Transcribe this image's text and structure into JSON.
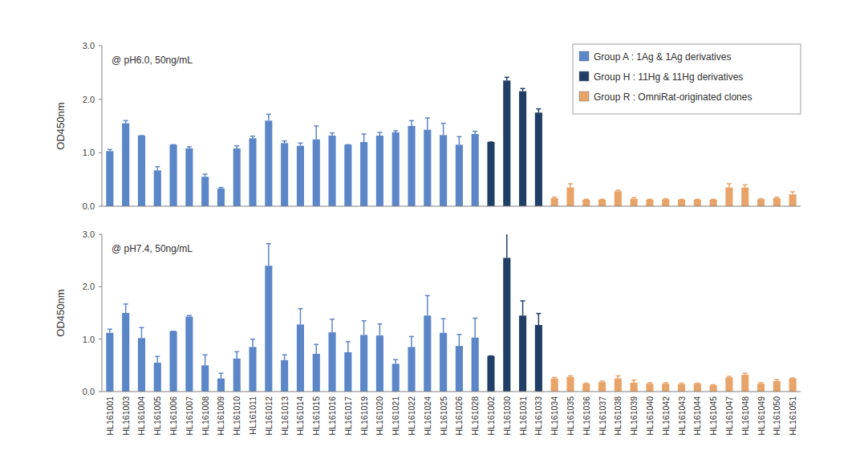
{
  "chart_data": [
    {
      "type": "bar",
      "title": "@ pH6.0, 50ng/mL",
      "y_label": "OD450nm",
      "categories": [
        "HL161001",
        "HL161003",
        "HL161004",
        "HL161005",
        "HL161006",
        "HL161007",
        "HL161008",
        "HL161009",
        "HL161010",
        "HL161011",
        "HL161012",
        "HL161013",
        "HL161014",
        "HL161015",
        "HL161016",
        "HL161017",
        "HL161019",
        "HL161020",
        "HL161021",
        "HL161022",
        "HL161024",
        "HL161025",
        "HL161026",
        "HL161028",
        "HL161002",
        "HL161030",
        "HL161031",
        "HL161033",
        "HL161034",
        "HL161035",
        "HL161036",
        "HL161037",
        "HL161038",
        "HL161039",
        "HL161040",
        "HL161042",
        "HL161043",
        "HL161044",
        "HL161045",
        "HL161047",
        "HL161048",
        "HL161049",
        "HL161050",
        "HL161051"
      ],
      "series": [
        {
          "name": "Group A : 1Ag & 1Ag derivatives",
          "color": "#5b86c8",
          "values": [
            1.03,
            1.55,
            1.32,
            0.67,
            1.15,
            1.08,
            0.55,
            0.33,
            1.08,
            1.27,
            1.6,
            1.18,
            1.13,
            1.25,
            1.32,
            1.15,
            1.2,
            1.32,
            1.38,
            1.5,
            1.43,
            1.33,
            1.15,
            1.35,
            null,
            null,
            null,
            null,
            null,
            null,
            null,
            null,
            null,
            null,
            null,
            null,
            null,
            null,
            null,
            null,
            null,
            null,
            null,
            null
          ],
          "errors": [
            0.03,
            0.05,
            0,
            0.07,
            0,
            0.03,
            0.05,
            0.02,
            0.05,
            0.04,
            0.12,
            0.04,
            0.05,
            0.25,
            0.05,
            0,
            0.15,
            0.06,
            0.03,
            0.1,
            0.22,
            0.22,
            0.15,
            0.05,
            null,
            null,
            null,
            null,
            null,
            null,
            null,
            null,
            null,
            null,
            null,
            null,
            null,
            null,
            null,
            null,
            null,
            null,
            null,
            null
          ]
        },
        {
          "name": "Group H : 11Hg & 11Hg derivatives",
          "color": "#213f66",
          "values": [
            null,
            null,
            null,
            null,
            null,
            null,
            null,
            null,
            null,
            null,
            null,
            null,
            null,
            null,
            null,
            null,
            null,
            null,
            null,
            null,
            null,
            null,
            null,
            null,
            1.2,
            2.35,
            2.15,
            1.75,
            null,
            null,
            null,
            null,
            null,
            null,
            null,
            null,
            null,
            null,
            null,
            null,
            null,
            null,
            null,
            null
          ],
          "errors": [
            null,
            null,
            null,
            null,
            null,
            null,
            null,
            null,
            null,
            null,
            null,
            null,
            null,
            null,
            null,
            null,
            null,
            null,
            null,
            null,
            null,
            null,
            null,
            null,
            0,
            0.06,
            0.05,
            0.07,
            null,
            null,
            null,
            null,
            null,
            null,
            null,
            null,
            null,
            null,
            null,
            null,
            null,
            null,
            null,
            null
          ]
        },
        {
          "name": "Group R : OmniRat-originated clones",
          "color": "#e8a368",
          "values": [
            null,
            null,
            null,
            null,
            null,
            null,
            null,
            null,
            null,
            null,
            null,
            null,
            null,
            null,
            null,
            null,
            null,
            null,
            null,
            null,
            null,
            null,
            null,
            null,
            null,
            null,
            null,
            null,
            0.15,
            0.35,
            0.12,
            0.12,
            0.28,
            0.14,
            0.12,
            0.13,
            0.12,
            0.12,
            0.12,
            0.35,
            0.35,
            0.13,
            0.15,
            0.22
          ],
          "errors": [
            null,
            null,
            null,
            null,
            null,
            null,
            null,
            null,
            null,
            null,
            null,
            null,
            null,
            null,
            null,
            null,
            null,
            null,
            null,
            null,
            null,
            null,
            null,
            null,
            null,
            null,
            null,
            null,
            0.02,
            0.07,
            0.01,
            0.01,
            0.02,
            0.02,
            0.01,
            0.01,
            0.01,
            0.01,
            0.01,
            0.07,
            0.05,
            0.01,
            0.02,
            0.05
          ]
        }
      ],
      "ylim": [
        0,
        3
      ],
      "yticks": [
        {
          "value": 0,
          "label": "0.0"
        },
        {
          "value": 1,
          "label": "1.0"
        },
        {
          "value": 2,
          "label": "2.0"
        },
        {
          "value": 3,
          "label": "3.0"
        }
      ],
      "grid": false,
      "legend": "upper right",
      "tick_labels": "y"
    },
    {
      "type": "bar",
      "title": "@ pH7.4, 50ng/mL",
      "y_label": "OD450nm",
      "categories": [
        "HL161001",
        "HL161003",
        "HL161004",
        "HL161005",
        "HL161006",
        "HL161007",
        "HL161008",
        "HL161009",
        "HL161010",
        "HL161011",
        "HL161012",
        "HL161013",
        "HL161014",
        "HL161015",
        "HL161016",
        "HL161017",
        "HL161019",
        "HL161020",
        "HL161021",
        "HL161022",
        "HL161024",
        "HL161025",
        "HL161026",
        "HL161028",
        "HL161002",
        "HL161030",
        "HL161031",
        "HL161033",
        "HL161034",
        "HL161035",
        "HL161036",
        "HL161037",
        "HL161038",
        "HL161039",
        "HL161040",
        "HL161042",
        "HL161043",
        "HL161044",
        "HL161045",
        "HL161047",
        "HL161048",
        "HL161049",
        "HL161050",
        "HL161051"
      ],
      "series": [
        {
          "color": "#5b86c8",
          "values": [
            1.12,
            1.5,
            1.02,
            0.55,
            1.15,
            1.43,
            0.5,
            0.25,
            0.63,
            0.85,
            2.4,
            0.6,
            1.28,
            0.72,
            1.13,
            0.75,
            1.08,
            1.07,
            0.53,
            0.85,
            1.45,
            1.12,
            0.87,
            1.03,
            null,
            null,
            null,
            null,
            null,
            null,
            null,
            null,
            null,
            null,
            null,
            null,
            null,
            null,
            null,
            null,
            null,
            null,
            null,
            null
          ],
          "errors": [
            0.07,
            0.17,
            0.2,
            0.12,
            0,
            0.02,
            0.2,
            0.1,
            0.13,
            0.15,
            0.42,
            0.1,
            0.3,
            0.18,
            0.25,
            0.2,
            0.27,
            0.22,
            0.08,
            0.2,
            0.38,
            0.27,
            0.22,
            0.37,
            null,
            null,
            null,
            null,
            null,
            null,
            null,
            null,
            null,
            null,
            null,
            null,
            null,
            null,
            null,
            null,
            null,
            null,
            null,
            null
          ]
        },
        {
          "color": "#213f66",
          "values": [
            null,
            null,
            null,
            null,
            null,
            null,
            null,
            null,
            null,
            null,
            null,
            null,
            null,
            null,
            null,
            null,
            null,
            null,
            null,
            null,
            null,
            null,
            null,
            null,
            0.68,
            2.55,
            1.45,
            1.27,
            null,
            null,
            null,
            null,
            null,
            null,
            null,
            null,
            null,
            null,
            null,
            null,
            null,
            null,
            null,
            null
          ],
          "errors": [
            null,
            null,
            null,
            null,
            null,
            null,
            null,
            null,
            null,
            null,
            null,
            null,
            null,
            null,
            null,
            null,
            null,
            null,
            null,
            null,
            null,
            null,
            null,
            null,
            0,
            0.5,
            0.28,
            0.22,
            null,
            null,
            null,
            null,
            null,
            null,
            null,
            null,
            null,
            null,
            null,
            null,
            null,
            null,
            null,
            null
          ]
        },
        {
          "color": "#e8a368",
          "values": [
            null,
            null,
            null,
            null,
            null,
            null,
            null,
            null,
            null,
            null,
            null,
            null,
            null,
            null,
            null,
            null,
            null,
            null,
            null,
            null,
            null,
            null,
            null,
            null,
            null,
            null,
            null,
            null,
            0.25,
            0.28,
            0.15,
            0.18,
            0.25,
            0.17,
            0.15,
            0.15,
            0.14,
            0.15,
            0.12,
            0.27,
            0.32,
            0.15,
            0.2,
            0.25
          ],
          "errors": [
            null,
            null,
            null,
            null,
            null,
            null,
            null,
            null,
            null,
            null,
            null,
            null,
            null,
            null,
            null,
            null,
            null,
            null,
            null,
            null,
            null,
            null,
            null,
            null,
            null,
            null,
            null,
            null,
            0.02,
            0.02,
            0.01,
            0.02,
            0.05,
            0.05,
            0.02,
            0.02,
            0.02,
            0.01,
            0.01,
            0.02,
            0.03,
            0.02,
            0.03,
            0.01
          ]
        }
      ],
      "ylim": [
        0,
        3
      ],
      "yticks": [
        {
          "value": 0,
          "label": "0.0"
        },
        {
          "value": 1,
          "label": "1.0"
        },
        {
          "value": 2,
          "label": "2.0"
        },
        {
          "value": 3,
          "label": "3.0"
        }
      ],
      "grid": false
    }
  ]
}
